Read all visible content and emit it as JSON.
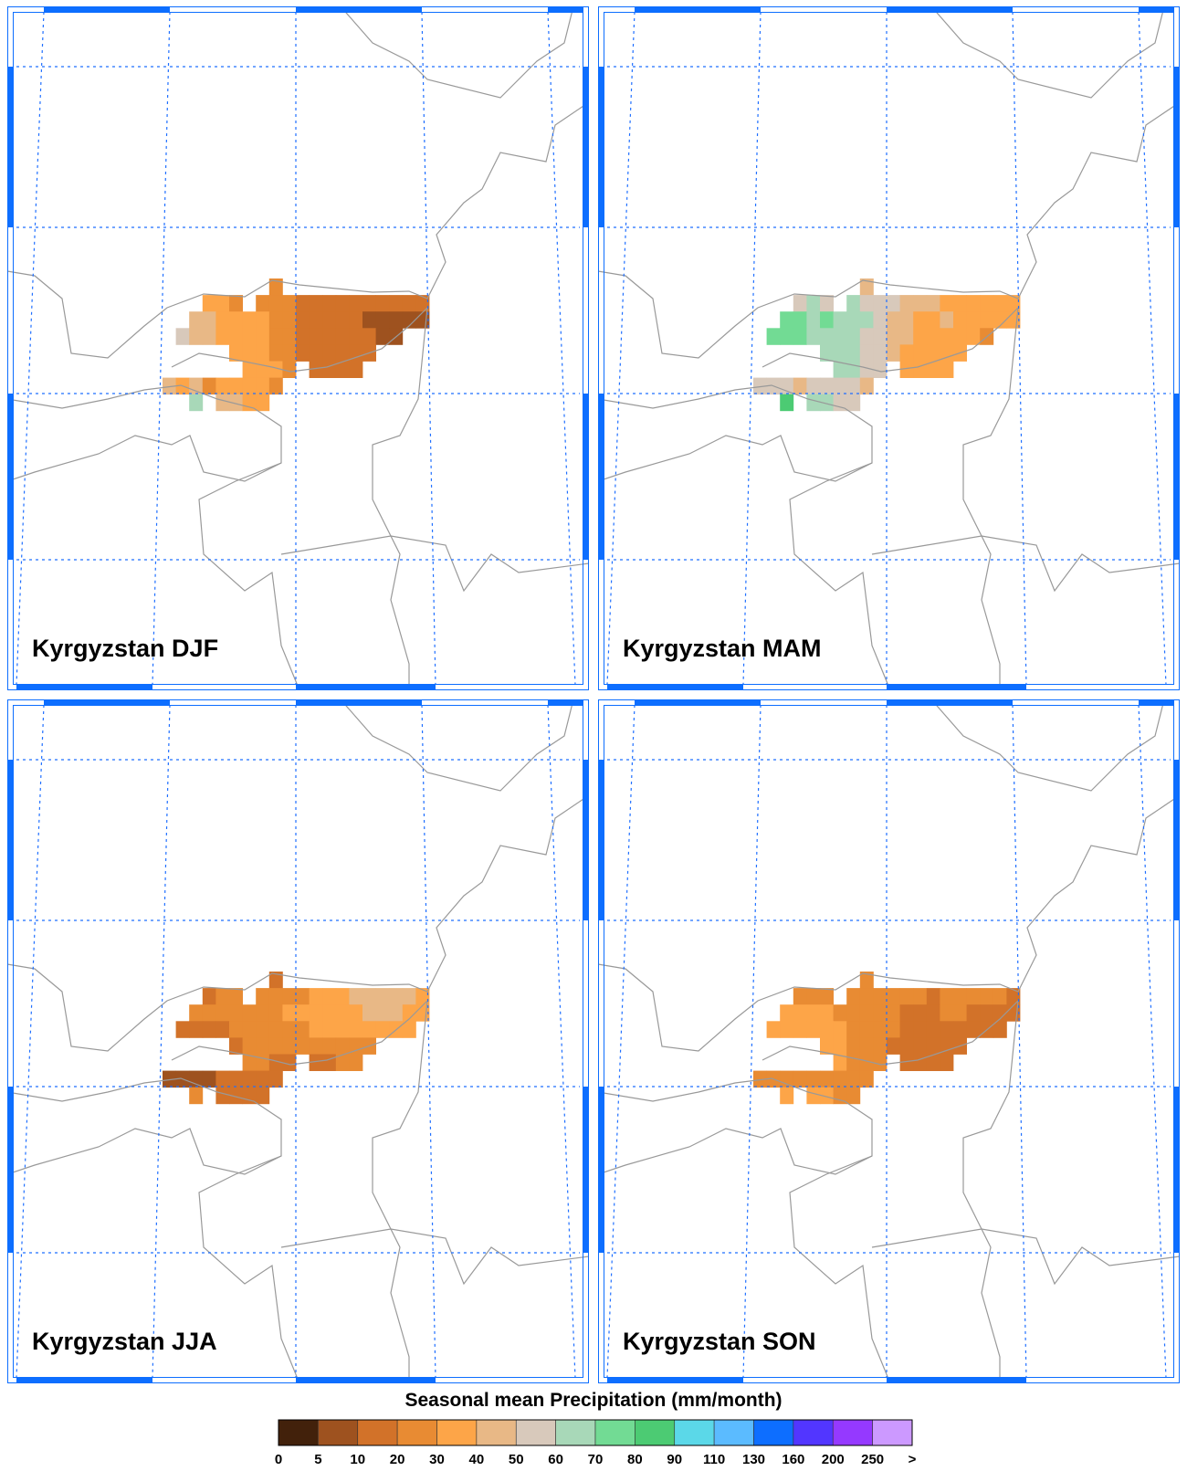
{
  "chart_data": {
    "type": "heatmap",
    "colorbar": {
      "title": "Seasonal mean Precipitation (mm/month)",
      "tick_labels": [
        "0",
        "5",
        "10",
        "20",
        "30",
        "40",
        "50",
        "60",
        "70",
        "80",
        "90",
        "110",
        "130",
        "160",
        "200",
        "250",
        ">"
      ],
      "colors": [
        "#42210B",
        "#9E521F",
        "#D27229",
        "#E88B33",
        "#FDA548",
        "#E8B886",
        "#D8C9BB",
        "#A8D8B8",
        "#72DB94",
        "#4CCB73",
        "#5BD8E8",
        "#5BBBFF",
        "#0D6EFF",
        "#5236FF",
        "#9539FF",
        "#CC99FF"
      ]
    },
    "grid_legend": "each character is the colorbar bin index (0-9, a-f) of a grid cell; '.' = no data",
    "panels": [
      {
        "label": "Kyrgyzstan DJF",
        "rows": [
          "........3...........",
          "...443.3332222222222",
          "..554444332222211111",
          ".65544443322222211..",
          ".....44433222222....",
          "......4443.2222.....",
          "545344443...........",
          "..7.5544............"
        ]
      },
      {
        "label": "Kyrgyzstan MAM",
        "rows": [
          "........5...........",
          "...676.7666555444444",
          "..887877765544544444",
          ".88877776655444443..",
          ".....77766544444....",
          "......7766.4444.....",
          "666566665...........",
          "..9.7766............"
        ]
      },
      {
        "label": "Kyrgyzstan JJA",
        "rows": [
          "........2...........",
          "...233.3333444555554",
          "..333333344444455544",
          ".222233333344444444.",
          ".....23333333333....",
          "......3322.2233.....",
          "111122222...........",
          "..3.2222............"
        ]
      },
      {
        "label": "Kyrgyzstan SON",
        "rows": [
          "........3...........",
          "...333.3333332333332",
          "..444433333222332222",
          ".444444333322222222.",
          ".....44333222222....",
          "......4333.2222.....",
          "333333333...........",
          "..4.4433............"
        ]
      }
    ],
    "frame_color": "#0D6EFF",
    "graticule_color": "#1F6FFF",
    "border_color": "#999999"
  }
}
